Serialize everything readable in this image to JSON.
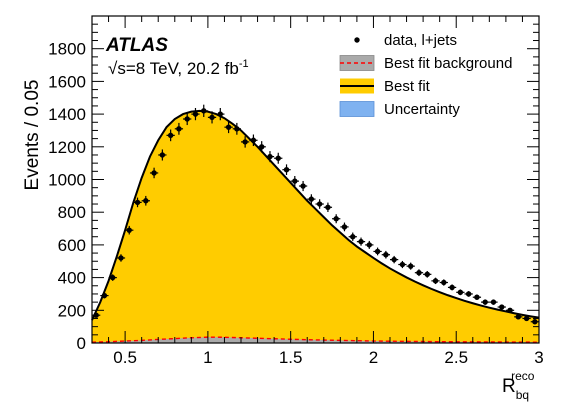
{
  "chart_data": {
    "type": "histogram",
    "experiment": "ATLAS",
    "energy_label": {
      "sqrt_prefix": "√",
      "s_text": "s=8 TeV, 20.2 fb",
      "exponent": "-1"
    },
    "xlabel": {
      "main": "R",
      "sub": "bq",
      "sup": "reco"
    },
    "ylabel": "Events / 0.05",
    "xlim": [
      0.3,
      3.0
    ],
    "ylim": [
      0,
      2000
    ],
    "xticks": [
      0.5,
      1,
      1.5,
      2,
      2.5,
      3
    ],
    "xtick_labels": [
      "0.5",
      "1",
      "1.5",
      "2",
      "2.5",
      "3"
    ],
    "yticks": [
      0,
      200,
      400,
      600,
      800,
      1000,
      1200,
      1400,
      1600,
      1800
    ],
    "ytick_labels": [
      "0",
      "200",
      "400",
      "600",
      "800",
      "1000",
      "1200",
      "1400",
      "1600",
      "1800"
    ],
    "legend": {
      "position": "top-right",
      "entries": [
        {
          "label": "data, l+jets",
          "style": "marker"
        },
        {
          "label": "Best fit background",
          "style": "box-dashed"
        },
        {
          "label": "Best fit",
          "style": "box-line"
        },
        {
          "label": "Uncertainty",
          "style": "box"
        }
      ]
    },
    "colors": {
      "best_fit_fill": "#ffcc00",
      "background_fill": "#aaaaaa",
      "background_line": "#ff0000",
      "uncertainty_fill": "#7fb2f0",
      "uncertainty_edge": "#5a8fd6",
      "data": "#000000"
    },
    "bins": {
      "x_low": [
        0.3,
        0.35,
        0.4,
        0.45,
        0.5,
        0.55,
        0.6,
        0.65,
        0.7,
        0.75,
        0.8,
        0.85,
        0.9,
        0.95,
        1.0,
        1.05,
        1.1,
        1.15,
        1.2,
        1.25,
        1.3,
        1.35,
        1.4,
        1.45,
        1.5,
        1.55,
        1.6,
        1.65,
        1.7,
        1.75,
        1.8,
        1.85,
        1.9,
        1.95,
        2.0,
        2.05,
        2.1,
        2.15,
        2.2,
        2.25,
        2.3,
        2.35,
        2.4,
        2.45,
        2.5,
        2.55,
        2.6,
        2.65,
        2.7,
        2.75,
        2.8,
        2.85,
        2.9,
        2.95
      ],
      "bin_width": 0.05
    },
    "series": [
      {
        "name": "data, l+jets",
        "kind": "points",
        "x": [
          0.325,
          0.375,
          0.425,
          0.475,
          0.525,
          0.575,
          0.625,
          0.675,
          0.725,
          0.775,
          0.825,
          0.875,
          0.925,
          0.975,
          1.025,
          1.075,
          1.125,
          1.175,
          1.225,
          1.275,
          1.325,
          1.375,
          1.425,
          1.475,
          1.525,
          1.575,
          1.625,
          1.675,
          1.725,
          1.775,
          1.825,
          1.875,
          1.925,
          1.975,
          2.025,
          2.075,
          2.125,
          2.175,
          2.225,
          2.275,
          2.325,
          2.375,
          2.425,
          2.475,
          2.525,
          2.575,
          2.625,
          2.675,
          2.725,
          2.775,
          2.825,
          2.875,
          2.925,
          2.975
        ],
        "y": [
          170,
          290,
          400,
          520,
          690,
          860,
          870,
          1040,
          1150,
          1270,
          1310,
          1370,
          1400,
          1420,
          1380,
          1400,
          1320,
          1310,
          1230,
          1240,
          1200,
          1140,
          1130,
          1060,
          990,
          960,
          880,
          850,
          830,
          760,
          710,
          650,
          620,
          600,
          560,
          540,
          510,
          480,
          470,
          430,
          420,
          380,
          370,
          340,
          310,
          300,
          280,
          250,
          250,
          220,
          200,
          160,
          150,
          130
        ]
      },
      {
        "name": "Best fit",
        "kind": "curve",
        "x": [
          0.3,
          0.35,
          0.4,
          0.45,
          0.5,
          0.55,
          0.6,
          0.65,
          0.7,
          0.75,
          0.8,
          0.85,
          0.9,
          0.95,
          1.0,
          1.05,
          1.1,
          1.15,
          1.2,
          1.25,
          1.3,
          1.35,
          1.4,
          1.45,
          1.5,
          1.55,
          1.6,
          1.65,
          1.7,
          1.75,
          1.8,
          1.85,
          1.9,
          1.95,
          2.0,
          2.05,
          2.1,
          2.15,
          2.2,
          2.25,
          2.3,
          2.35,
          2.4,
          2.45,
          2.5,
          2.55,
          2.6,
          2.65,
          2.7,
          2.75,
          2.8,
          2.85,
          2.9,
          2.95,
          3.0
        ],
        "y": [
          140,
          250,
          380,
          530,
          690,
          860,
          1010,
          1140,
          1240,
          1320,
          1370,
          1400,
          1415,
          1420,
          1415,
          1400,
          1375,
          1340,
          1300,
          1250,
          1200,
          1145,
          1090,
          1035,
          980,
          925,
          870,
          820,
          770,
          720,
          675,
          630,
          590,
          555,
          520,
          487,
          456,
          428,
          401,
          376,
          353,
          331,
          311,
          292,
          275,
          258,
          243,
          229,
          216,
          204,
          193,
          182,
          172,
          163,
          155
        ]
      },
      {
        "name": "Best fit background",
        "kind": "curve",
        "x": [
          0.3,
          0.4,
          0.5,
          0.6,
          0.7,
          0.8,
          0.9,
          1.0,
          1.1,
          1.2,
          1.3,
          1.4,
          1.5,
          1.6,
          1.7,
          1.8,
          1.9,
          2.0,
          2.2,
          2.4,
          2.6,
          2.8,
          3.0
        ],
        "y": [
          5,
          8,
          12,
          16,
          22,
          27,
          32,
          36,
          35,
          32,
          29,
          26,
          23,
          20,
          18,
          16,
          14,
          12,
          10,
          8,
          7,
          6,
          5
        ]
      }
    ],
    "grid": false
  }
}
